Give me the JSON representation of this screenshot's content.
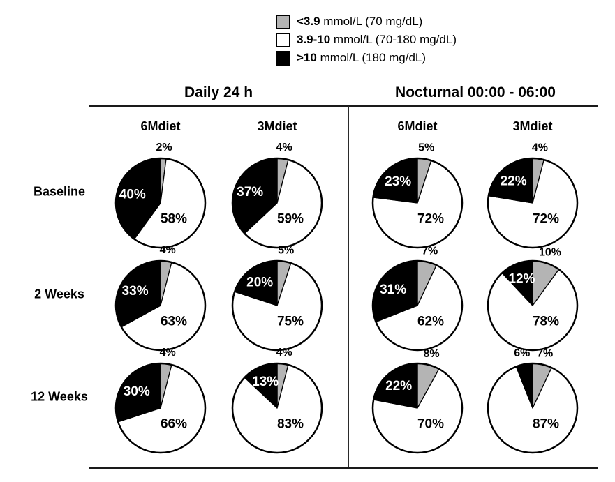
{
  "legend": {
    "items": [
      {
        "name": "low",
        "swatch_color": "#b4b4b4",
        "range_bold": "<3.9",
        "range_rest": " mmol/L (70 mg/dL)"
      },
      {
        "name": "in_range",
        "swatch_color": "#ffffff",
        "range_bold": "3.9-10",
        "range_rest": " mmol/L (70-180 mg/dL)"
      },
      {
        "name": "high",
        "swatch_color": "#000000",
        "range_bold": ">10",
        "range_rest": " mmol/L (180 mg/dL)"
      }
    ]
  },
  "header": {
    "groups": [
      {
        "label": "Daily 24 h",
        "columns": [
          "6Mdiet",
          "3Mdiet"
        ]
      },
      {
        "label": "Nocturnal 00:00 - 06:00",
        "columns": [
          "6Mdiet",
          "3Mdiet"
        ]
      }
    ]
  },
  "row_labels": [
    "Baseline",
    "2 Weeks",
    "12 Weeks"
  ],
  "chart_data": {
    "type": "pie",
    "unit": "%",
    "slice_order_clockwise_from_12": [
      "low",
      "in_range",
      "high"
    ],
    "slice_colors": {
      "low": "#b4b4b4",
      "in_range": "#ffffff",
      "high": "#000000"
    },
    "slice_meaning": {
      "low": "<3.9 mmol/L (70 mg/dL)",
      "in_range": "3.9-10 mmol/L (70-180 mg/dL)",
      "high": ">10 mmol/L (180 mg/dL)"
    },
    "pies": [
      {
        "row": "Baseline",
        "group": "Daily 24 h",
        "column": "6Mdiet",
        "values": {
          "low": 2,
          "in_range": 58,
          "high": 40
        }
      },
      {
        "row": "Baseline",
        "group": "Daily 24 h",
        "column": "3Mdiet",
        "values": {
          "low": 4,
          "in_range": 59,
          "high": 37
        }
      },
      {
        "row": "Baseline",
        "group": "Nocturnal 00:00 - 06:00",
        "column": "6Mdiet",
        "values": {
          "low": 5,
          "in_range": 72,
          "high": 23
        }
      },
      {
        "row": "Baseline",
        "group": "Nocturnal 00:00 - 06:00",
        "column": "3Mdiet",
        "values": {
          "low": 4,
          "in_range": 72,
          "high": 22
        }
      },
      {
        "row": "2 Weeks",
        "group": "Daily 24 h",
        "column": "6Mdiet",
        "values": {
          "low": 4,
          "in_range": 63,
          "high": 33
        }
      },
      {
        "row": "2 Weeks",
        "group": "Daily 24 h",
        "column": "3Mdiet",
        "values": {
          "low": 5,
          "in_range": 75,
          "high": 20
        }
      },
      {
        "row": "2 Weeks",
        "group": "Nocturnal 00:00 - 06:00",
        "column": "6Mdiet",
        "values": {
          "low": 7,
          "in_range": 62,
          "high": 31
        }
      },
      {
        "row": "2 Weeks",
        "group": "Nocturnal 00:00 - 06:00",
        "column": "3Mdiet",
        "values": {
          "low": 10,
          "in_range": 78,
          "high": 12
        }
      },
      {
        "row": "12 Weeks",
        "group": "Daily 24 h",
        "column": "6Mdiet",
        "values": {
          "low": 4,
          "in_range": 66,
          "high": 30
        }
      },
      {
        "row": "12 Weeks",
        "group": "Daily 24 h",
        "column": "3Mdiet",
        "values": {
          "low": 4,
          "in_range": 83,
          "high": 13
        }
      },
      {
        "row": "12 Weeks",
        "group": "Nocturnal 00:00 - 06:00",
        "column": "6Mdiet",
        "values": {
          "low": 8,
          "in_range": 70,
          "high": 22
        }
      },
      {
        "row": "12 Weeks",
        "group": "Nocturnal 00:00 - 06:00",
        "column": "3Mdiet",
        "values": {
          "low": 7,
          "in_range": 87,
          "high": 6
        }
      }
    ]
  }
}
